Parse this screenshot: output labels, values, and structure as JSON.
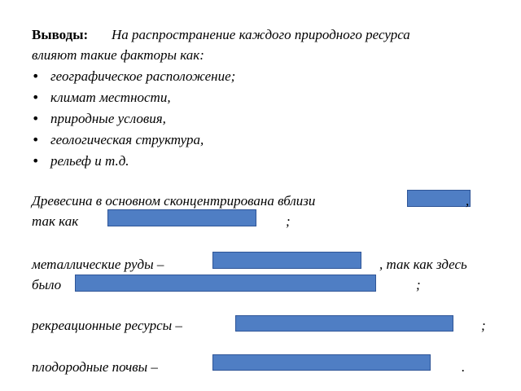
{
  "conclusions": {
    "heading": "Выводы:",
    "intro_line1": "На распространение каждого природного ресурса",
    "intro_line2": "влияют такие факторы как:",
    "bullet_glyph": "•",
    "factors": [
      "географическое расположение;",
      "климат местности,",
      "природные условия,",
      "геологическая структура,",
      "рельеф и т.д."
    ]
  },
  "statements": {
    "wood_line1": "Древесина в основном сконцентрирована вблизи",
    "wood_comma": ",",
    "wood_line2": "так как",
    "wood_end": ";",
    "ores_line1": "металлические руды –",
    "ores_middle": ", так как здесь",
    "ores_line2": "было",
    "ores_end": ";",
    "recreation": "рекреационные ресурсы –",
    "recreation_end": ";",
    "soils": "плодородные почвы –",
    "soils_end": "."
  },
  "colors": {
    "blank_fill": "#4f7ec4",
    "blank_border": "#2f5597"
  }
}
